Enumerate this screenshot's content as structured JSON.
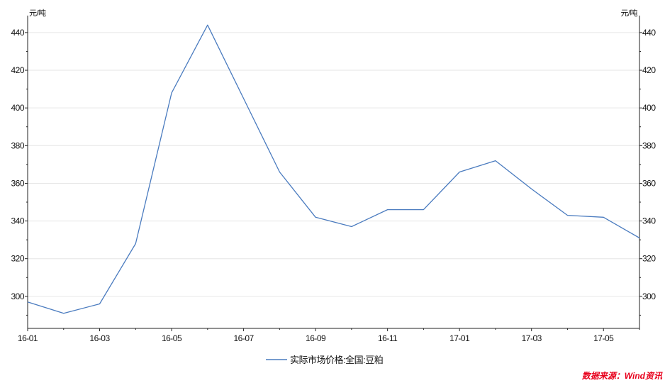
{
  "chart_data": {
    "type": "line",
    "title": "",
    "xlabel": "",
    "ylabel": "",
    "y_unit_left": "元/吨",
    "y_unit_right": "元/吨",
    "x": [
      "16-01",
      "16-02",
      "16-03",
      "16-04",
      "16-05",
      "16-06",
      "16-07",
      "16-08",
      "16-09",
      "16-10",
      "16-11",
      "16-12",
      "17-01",
      "17-02",
      "17-03",
      "17-04",
      "17-05",
      "17-06"
    ],
    "x_tick_labels": [
      "16-01",
      "16-03",
      "16-05",
      "16-07",
      "16-09",
      "16-11",
      "17-01",
      "17-03",
      "17-05"
    ],
    "y_ticks": [
      300,
      320,
      340,
      360,
      380,
      400,
      420,
      440
    ],
    "y_tick_labels": [
      "300",
      "320",
      "340",
      "360",
      "380",
      "400",
      "420",
      "440"
    ],
    "ylim": [
      283,
      449
    ],
    "grid": true,
    "legend_position": "bottom-center",
    "series": [
      {
        "name": "实际市场价格:全国:豆粕",
        "color": "#4a7bbf",
        "values": [
          297,
          291,
          296,
          328,
          408,
          444,
          405,
          366,
          342,
          337,
          346,
          346,
          366,
          372,
          357,
          343,
          342,
          331
        ]
      }
    ]
  },
  "source_note": "数据来源：Wind资讯"
}
